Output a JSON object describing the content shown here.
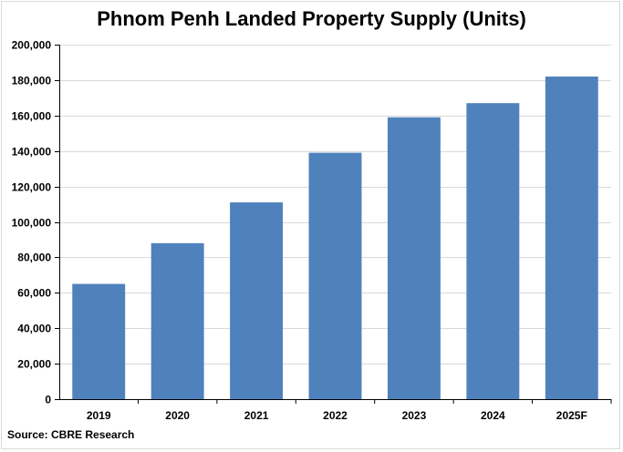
{
  "chart_data": {
    "type": "bar",
    "title": "Phnom Penh Landed Property Supply (Units)",
    "source": "Source:  CBRE Research",
    "categories": [
      "2019",
      "2020",
      "2021",
      "2022",
      "2023",
      "2024",
      "2025F"
    ],
    "values": [
      65000,
      88000,
      111000,
      139000,
      159000,
      167000,
      182000
    ],
    "ylim": [
      0,
      200000
    ],
    "yticks": [
      "0",
      "20,000",
      "40,000",
      "60,000",
      "80,000",
      "100,000",
      "120,000",
      "140,000",
      "160,000",
      "180,000",
      "200,000"
    ],
    "ytick_values": [
      0,
      20000,
      40000,
      60000,
      80000,
      100000,
      120000,
      140000,
      160000,
      180000,
      200000
    ],
    "grid": true,
    "bar_color": "#4f81bd",
    "grid_color": "#d9d9d9"
  }
}
